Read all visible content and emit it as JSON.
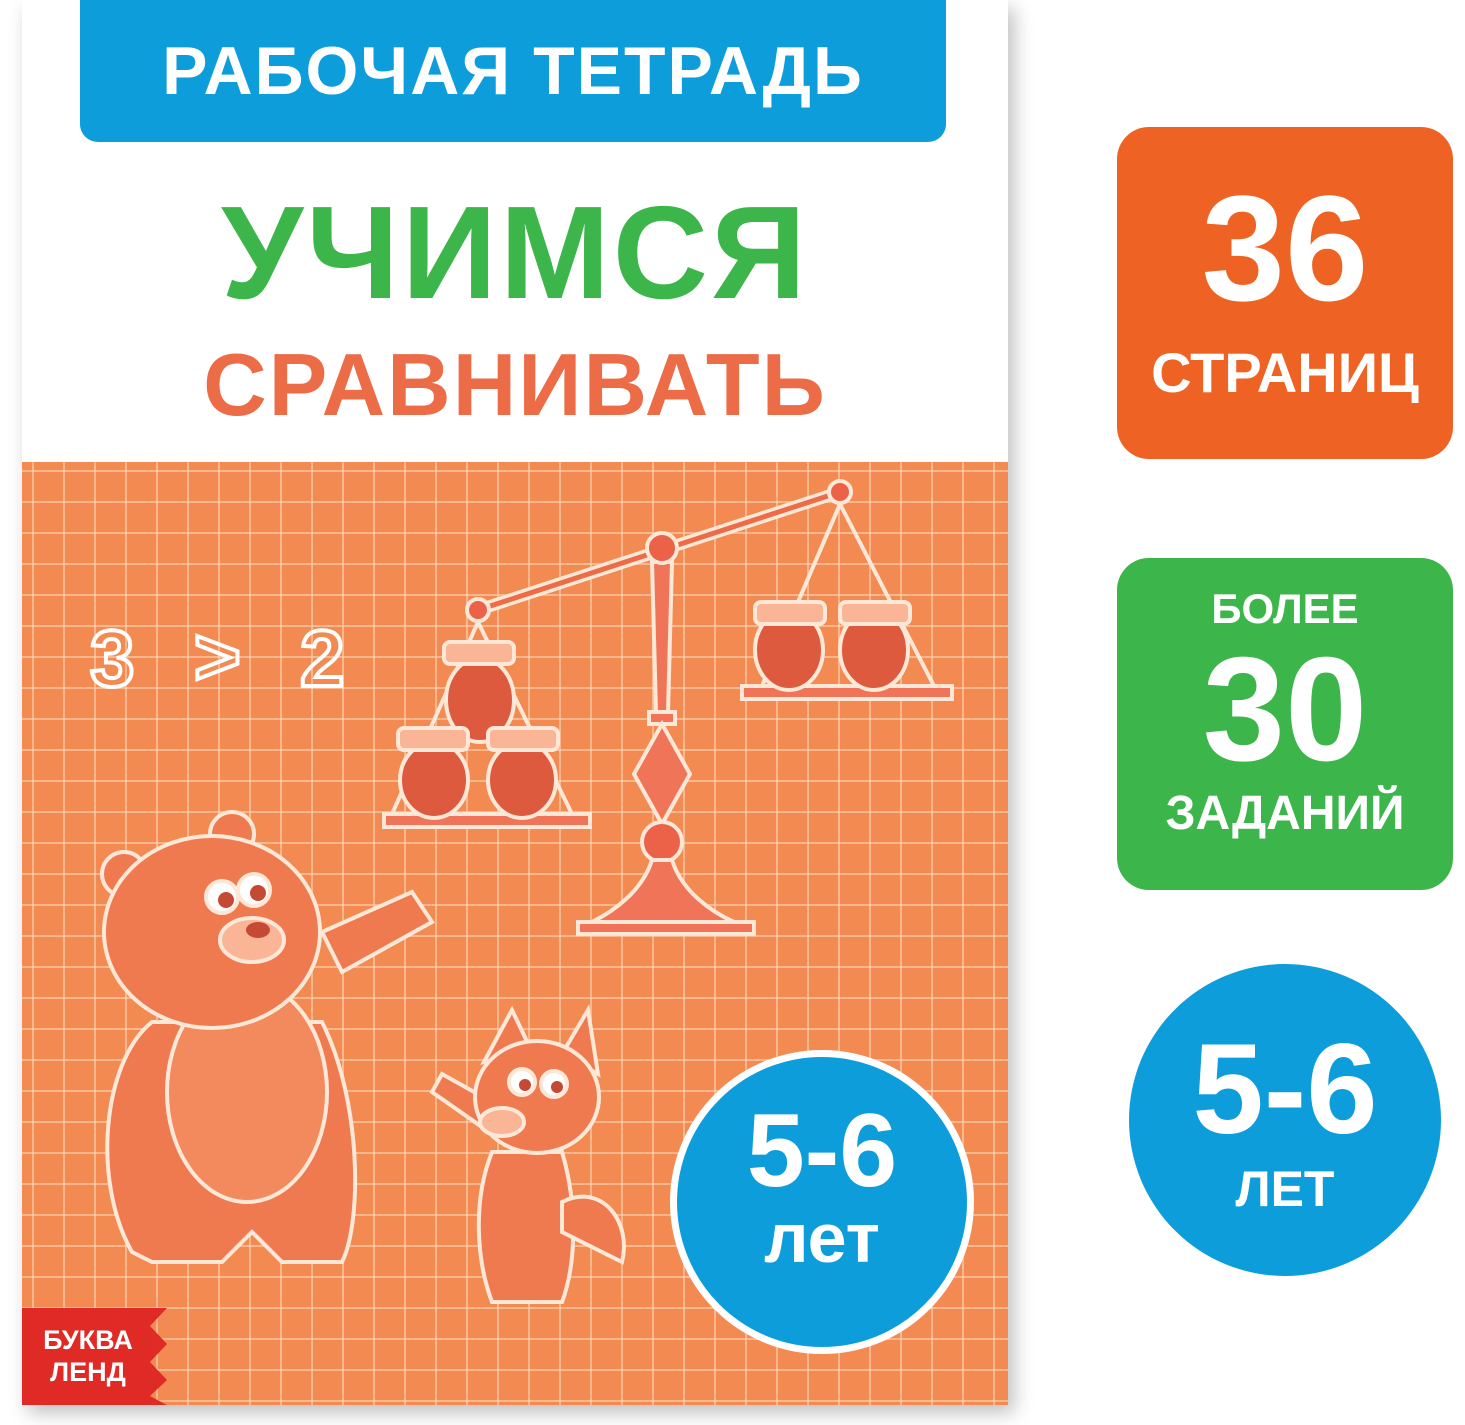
{
  "cover": {
    "series_label": "РАБОЧАЯ ТЕТРАДЬ",
    "title_line1": "УЧИМСЯ",
    "title_line2": "СРАВНИВАТЬ",
    "illustration": {
      "comparison_left": "3",
      "comparison_sign": ">",
      "comparison_right": "2"
    },
    "age": {
      "range": "5-6",
      "unit": "лет"
    },
    "publisher_logo": "БУКВА ЛЕНД"
  },
  "badges": {
    "pages": {
      "value": "36",
      "label": "СТРАНИЦ"
    },
    "tasks": {
      "prefix": "БОЛЕЕ",
      "value": "30",
      "label": "ЗАДАНИЙ"
    },
    "age": {
      "range": "5-6",
      "unit": "ЛЕТ"
    }
  },
  "colors": {
    "blue": "#0d9ddb",
    "green": "#3cb54a",
    "title_orange": "#ec6c47",
    "background_orange": "#f28a52",
    "badge_orange": "#ee6324",
    "logo_red": "#e02a26"
  }
}
